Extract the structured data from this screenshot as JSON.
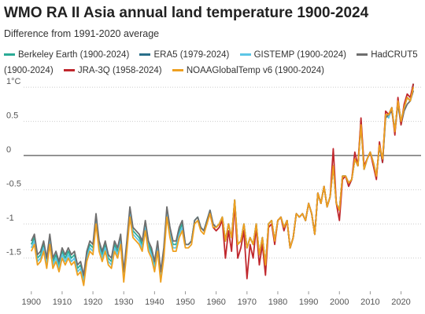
{
  "chart_data": {
    "type": "line",
    "title": "WMO RA II Asia annual land temperature 1900-2024",
    "subtitle": "Difference from 1991-2020 average",
    "x": [
      1900,
      1901,
      1902,
      1903,
      1904,
      1905,
      1906,
      1907,
      1908,
      1909,
      1910,
      1911,
      1912,
      1913,
      1914,
      1915,
      1916,
      1917,
      1918,
      1919,
      1920,
      1921,
      1922,
      1923,
      1924,
      1925,
      1926,
      1927,
      1928,
      1929,
      1930,
      1931,
      1932,
      1933,
      1934,
      1935,
      1936,
      1937,
      1938,
      1939,
      1940,
      1941,
      1942,
      1943,
      1944,
      1945,
      1946,
      1947,
      1948,
      1949,
      1950,
      1951,
      1952,
      1953,
      1954,
      1955,
      1956,
      1957,
      1958,
      1959,
      1960,
      1961,
      1962,
      1963,
      1964,
      1965,
      1966,
      1967,
      1968,
      1969,
      1970,
      1971,
      1972,
      1973,
      1974,
      1975,
      1976,
      1977,
      1978,
      1979,
      1980,
      1981,
      1982,
      1983,
      1984,
      1985,
      1986,
      1987,
      1988,
      1989,
      1990,
      1991,
      1992,
      1993,
      1994,
      1995,
      1996,
      1997,
      1998,
      1999,
      2000,
      2001,
      2002,
      2003,
      2004,
      2005,
      2006,
      2007,
      2008,
      2009,
      2010,
      2011,
      2012,
      2013,
      2014,
      2015,
      2016,
      2017,
      2018,
      2019,
      2020,
      2021,
      2022,
      2023,
      2024
    ],
    "xlim": [
      1897.5,
      2026.5
    ],
    "xticks": [
      1900,
      1910,
      1920,
      1930,
      1940,
      1950,
      1960,
      1970,
      1980,
      1990,
      2000,
      2010,
      2020
    ],
    "ylim": [
      -1.95,
      1.15
    ],
    "yticks": [
      {
        "value": 1,
        "label": "1°C"
      },
      0.5,
      0,
      -0.5,
      -1,
      -1.5
    ],
    "grid": true,
    "series": [
      {
        "name": "Berkeley Earth (1900-2024)",
        "color": "#2bab96",
        "values": [
          -1.3,
          -1.2,
          -1.5,
          -1.45,
          -1.3,
          -1.55,
          -1.2,
          -1.55,
          -1.45,
          -1.6,
          -1.4,
          -1.5,
          -1.4,
          -1.5,
          -1.45,
          -1.65,
          -1.6,
          -1.8,
          -1.45,
          -1.3,
          -1.35,
          -0.9,
          -1.3,
          -1.45,
          -1.3,
          -1.5,
          -1.55,
          -1.3,
          -1.4,
          -1.2,
          -1.75,
          -1.3,
          -0.8,
          -1.1,
          -1.15,
          -1.2,
          -1.3,
          -1.0,
          -1.3,
          -1.4,
          -1.6,
          -1.3,
          -1.75,
          -1.4,
          -0.8,
          -1.1,
          -1.3,
          -1.3,
          -1.1,
          -1.0,
          -1.3,
          -1.3,
          -1.25,
          -0.95,
          -0.9,
          -1.05,
          -1.1,
          -0.95,
          -0.8,
          -1.0,
          -1.05,
          -1.0,
          -0.9,
          -1.25,
          -1.0,
          -1.2,
          -0.65,
          -1.3,
          -1.25,
          -1.0,
          -1.35,
          -1.2,
          -1.3,
          -1.0,
          -1.45,
          -1.2,
          -1.6,
          -1.0,
          -0.95,
          -1.25,
          -0.95,
          -0.9,
          -1.05,
          -0.95,
          -1.35,
          -1.2,
          -0.85,
          -0.9,
          -0.85,
          -0.95,
          -0.7,
          -0.85,
          -1.15,
          -0.55,
          -0.7,
          -0.45,
          -0.75,
          -0.6,
          -0.15,
          -0.7,
          -0.8,
          -0.3,
          -0.3,
          -0.4,
          -0.35,
          -0.05,
          -0.15,
          0.45,
          -0.2,
          -0.05,
          0.05,
          -0.1,
          -0.3,
          0.15,
          -0.1,
          0.6,
          0.6,
          0.7,
          0.35,
          0.8,
          0.5,
          0.7,
          0.85,
          0.8,
          1.05
        ]
      },
      {
        "name": "ERA5 (1979-2024)",
        "color": "#2a6f8a",
        "values": [
          null,
          null,
          null,
          null,
          null,
          null,
          null,
          null,
          null,
          null,
          null,
          null,
          null,
          null,
          null,
          null,
          null,
          null,
          null,
          null,
          null,
          null,
          null,
          null,
          null,
          null,
          null,
          null,
          null,
          null,
          null,
          null,
          null,
          null,
          null,
          null,
          null,
          null,
          null,
          null,
          null,
          null,
          null,
          null,
          null,
          null,
          null,
          null,
          null,
          null,
          null,
          null,
          null,
          null,
          null,
          null,
          null,
          null,
          null,
          null,
          null,
          null,
          null,
          null,
          null,
          null,
          null,
          null,
          null,
          null,
          null,
          null,
          null,
          null,
          null,
          null,
          null,
          null,
          null,
          -1.25,
          -0.95,
          -0.9,
          -1.05,
          -0.95,
          -1.35,
          -1.2,
          -0.85,
          -0.9,
          -0.85,
          -0.95,
          -0.7,
          -0.85,
          -1.15,
          -0.55,
          -0.7,
          -0.45,
          -0.75,
          -0.6,
          -0.15,
          -0.7,
          -0.8,
          -0.3,
          -0.3,
          -0.4,
          -0.35,
          -0.05,
          -0.15,
          0.5,
          -0.2,
          -0.05,
          0.05,
          -0.1,
          -0.3,
          0.15,
          -0.1,
          0.6,
          0.6,
          0.7,
          0.35,
          0.8,
          0.5,
          0.7,
          0.85,
          0.8,
          1.05
        ]
      },
      {
        "name": "GISTEMP (1900-2024)",
        "color": "#5cc6e6",
        "values": [
          -1.35,
          -1.25,
          -1.55,
          -1.5,
          -1.35,
          -1.6,
          -1.25,
          -1.6,
          -1.5,
          -1.65,
          -1.45,
          -1.55,
          -1.45,
          -1.55,
          -1.5,
          -1.7,
          -1.65,
          -1.85,
          -1.5,
          -1.35,
          -1.4,
          -0.95,
          -1.35,
          -1.5,
          -1.35,
          -1.55,
          -1.6,
          -1.35,
          -1.45,
          -1.25,
          -1.8,
          -1.35,
          -0.85,
          -1.15,
          -1.2,
          -1.25,
          -1.35,
          -1.05,
          -1.35,
          -1.45,
          -1.65,
          -1.35,
          -1.8,
          -1.45,
          -0.85,
          -1.15,
          -1.35,
          -1.35,
          -1.15,
          -1.05,
          -1.3,
          -1.3,
          -1.25,
          -0.95,
          -0.9,
          -1.05,
          -1.1,
          -0.95,
          -0.8,
          -1.0,
          -1.05,
          -1.0,
          -0.9,
          -1.25,
          -1.0,
          -1.2,
          -0.65,
          -1.3,
          -1.25,
          -1.0,
          -1.35,
          -1.2,
          -1.3,
          -1.0,
          -1.45,
          -1.2,
          -1.6,
          -1.0,
          -0.95,
          -1.25,
          -0.95,
          -0.9,
          -1.05,
          -0.95,
          -1.35,
          -1.2,
          -0.85,
          -0.9,
          -0.85,
          -0.95,
          -0.7,
          -0.85,
          -1.15,
          -0.55,
          -0.7,
          -0.45,
          -0.75,
          -0.6,
          -0.15,
          -0.7,
          -0.8,
          -0.3,
          -0.3,
          -0.45,
          -0.35,
          -0.05,
          -0.15,
          0.45,
          -0.2,
          -0.05,
          0.05,
          -0.1,
          -0.3,
          0.15,
          -0.1,
          0.6,
          0.55,
          0.7,
          0.35,
          0.8,
          0.5,
          0.7,
          0.85,
          0.8,
          1.0
        ]
      },
      {
        "name": "HadCRUT5 (1900-2024)",
        "color": "#6e6e6e",
        "values": [
          -1.25,
          -1.15,
          -1.45,
          -1.4,
          -1.25,
          -1.5,
          -1.15,
          -1.5,
          -1.4,
          -1.55,
          -1.35,
          -1.45,
          -1.35,
          -1.45,
          -1.4,
          -1.6,
          -1.55,
          -1.75,
          -1.4,
          -1.25,
          -1.3,
          -0.85,
          -1.25,
          -1.4,
          -1.25,
          -1.45,
          -1.5,
          -1.25,
          -1.35,
          -1.15,
          -1.7,
          -1.25,
          -0.75,
          -1.05,
          -1.1,
          -1.15,
          -1.25,
          -0.95,
          -1.25,
          -1.35,
          -1.55,
          -1.25,
          -1.7,
          -1.35,
          -0.75,
          -1.05,
          -1.25,
          -1.25,
          -1.05,
          -0.95,
          -1.3,
          -1.3,
          -1.25,
          -0.95,
          -0.9,
          -1.05,
          -1.1,
          -0.95,
          -0.8,
          -1.0,
          -1.05,
          -1.0,
          -0.9,
          -1.25,
          -1.0,
          -1.2,
          -0.65,
          -1.3,
          -1.25,
          -1.0,
          -1.35,
          -1.2,
          -1.3,
          -1.0,
          -1.45,
          -1.2,
          -1.6,
          -1.0,
          -0.95,
          -1.25,
          -0.95,
          -0.9,
          -1.05,
          -0.95,
          -1.35,
          -1.2,
          -0.85,
          -0.9,
          -0.85,
          -0.95,
          -0.7,
          -0.85,
          -1.15,
          -0.55,
          -0.7,
          -0.45,
          -0.75,
          -0.6,
          -0.15,
          -0.7,
          -0.8,
          -0.3,
          -0.3,
          -0.4,
          -0.35,
          -0.05,
          -0.15,
          0.45,
          -0.2,
          -0.05,
          0.05,
          -0.1,
          -0.3,
          0.15,
          -0.1,
          0.55,
          0.6,
          0.65,
          0.35,
          0.75,
          0.45,
          0.65,
          0.75,
          0.8,
          0.95
        ]
      },
      {
        "name": "JRA-3Q (1958-2024)",
        "color": "#c0272d",
        "values": [
          null,
          null,
          null,
          null,
          null,
          null,
          null,
          null,
          null,
          null,
          null,
          null,
          null,
          null,
          null,
          null,
          null,
          null,
          null,
          null,
          null,
          null,
          null,
          null,
          null,
          null,
          null,
          null,
          null,
          null,
          null,
          null,
          null,
          null,
          null,
          null,
          null,
          null,
          null,
          null,
          null,
          null,
          null,
          null,
          null,
          null,
          null,
          null,
          null,
          null,
          null,
          null,
          null,
          null,
          null,
          null,
          null,
          null,
          -0.85,
          -1.05,
          -1.1,
          -1.05,
          -0.95,
          -1.5,
          -1.1,
          -1.4,
          -0.7,
          -1.5,
          -1.35,
          -1.1,
          -1.8,
          -1.3,
          -1.5,
          -1.05,
          -1.6,
          -1.3,
          -1.75,
          -1.05,
          -1.0,
          -1.3,
          -0.95,
          -0.9,
          -1.1,
          -0.95,
          -1.35,
          -1.2,
          -0.85,
          -0.9,
          -0.85,
          -0.95,
          -0.7,
          -0.85,
          -1.15,
          -0.55,
          -0.7,
          -0.45,
          -0.75,
          -0.6,
          0.1,
          -0.7,
          -0.95,
          -0.35,
          -0.3,
          -0.45,
          -0.35,
          0.05,
          -0.15,
          0.55,
          -0.15,
          -0.05,
          0.05,
          -0.15,
          -0.35,
          0.2,
          -0.1,
          0.65,
          0.6,
          0.7,
          0.3,
          0.85,
          0.45,
          0.75,
          0.9,
          0.85,
          1.05
        ]
      },
      {
        "name": "NOAAGlobalTemp v6 (1900-2024)",
        "color": "#eea020",
        "values": [
          -1.4,
          -1.3,
          -1.6,
          -1.55,
          -1.4,
          -1.65,
          -1.3,
          -1.65,
          -1.55,
          -1.7,
          -1.5,
          -1.6,
          -1.5,
          -1.6,
          -1.55,
          -1.75,
          -1.7,
          -1.9,
          -1.55,
          -1.4,
          -1.45,
          -1.0,
          -1.4,
          -1.55,
          -1.4,
          -1.6,
          -1.65,
          -1.4,
          -1.5,
          -1.3,
          -1.85,
          -1.4,
          -0.9,
          -1.2,
          -1.25,
          -1.3,
          -1.4,
          -1.1,
          -1.4,
          -1.5,
          -1.7,
          -1.4,
          -1.85,
          -1.5,
          -0.9,
          -1.2,
          -1.4,
          -1.4,
          -1.2,
          -1.1,
          -1.35,
          -1.35,
          -1.3,
          -1.0,
          -0.95,
          -1.1,
          -1.15,
          -1.0,
          -0.85,
          -1.05,
          -1.05,
          -1.0,
          -0.9,
          -1.25,
          -1.0,
          -1.2,
          -0.65,
          -1.3,
          -1.25,
          -1.0,
          -1.35,
          -1.2,
          -1.3,
          -1.0,
          -1.45,
          -1.2,
          -1.6,
          -1.0,
          -0.95,
          -1.25,
          -0.95,
          -0.9,
          -1.05,
          -0.95,
          -1.35,
          -1.2,
          -0.85,
          -0.9,
          -0.85,
          -0.95,
          -0.7,
          -0.85,
          -1.15,
          -0.55,
          -0.7,
          -0.45,
          -0.75,
          -0.6,
          -0.15,
          -0.7,
          -0.8,
          -0.3,
          -0.3,
          -0.4,
          -0.35,
          -0.05,
          -0.15,
          0.45,
          -0.2,
          -0.05,
          0.05,
          -0.1,
          -0.3,
          0.15,
          -0.05,
          0.6,
          0.6,
          0.7,
          0.35,
          0.8,
          0.5,
          0.7,
          0.85,
          0.8,
          1.0
        ]
      }
    ]
  }
}
